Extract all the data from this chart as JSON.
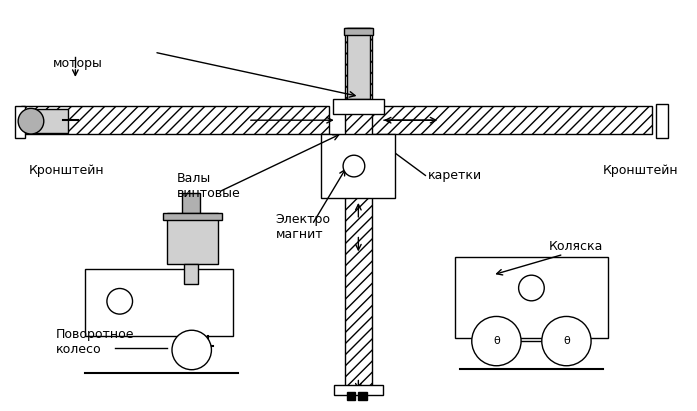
{
  "bg_color": "#ffffff",
  "black": "#000000",
  "gray_light": "#d0d0d0",
  "gray_med": "#b0b0b0",
  "gray_dark": "#888888",
  "labels": {
    "motors": "моторы",
    "bracket_left": "Кронштейн",
    "bracket_right": "Кронштейн",
    "shafts": "Валы\nвинтовые",
    "carriages": "каретки",
    "electromagnet": "Электро\nмагнит",
    "stroller": "Коляска",
    "pivot_wheel": "Поворотное\nколесо"
  }
}
